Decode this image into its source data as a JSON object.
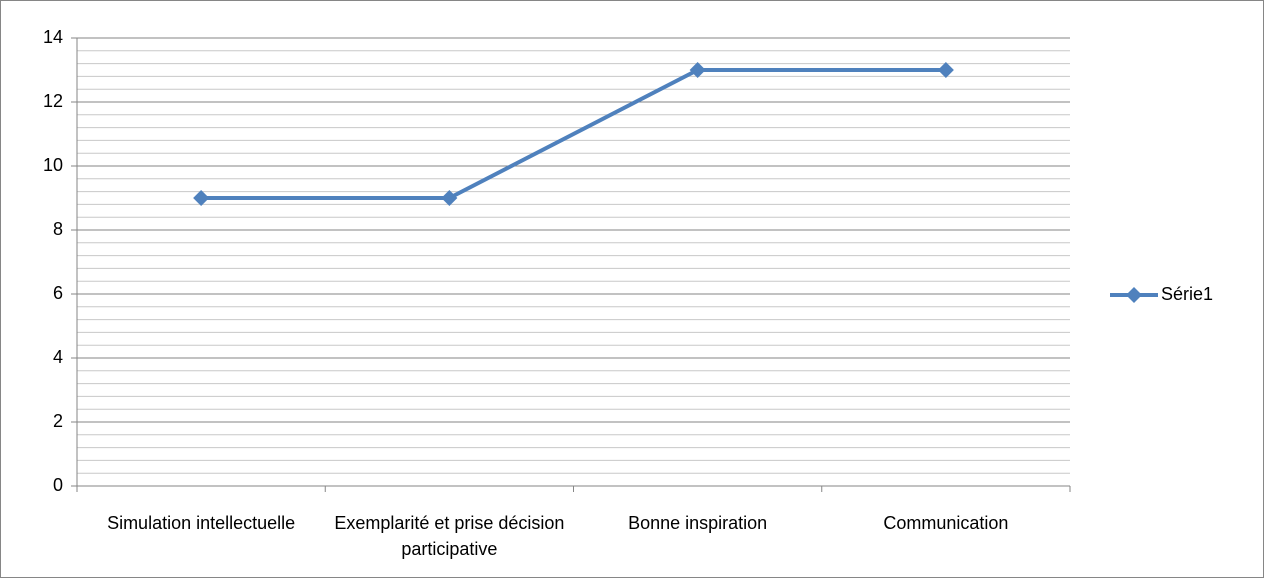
{
  "chart_data": {
    "type": "line",
    "categories": [
      "Simulation intellectuelle",
      "Exemplarité et prise décision participative",
      "Bonne inspiration",
      "Communication"
    ],
    "series": [
      {
        "name": "Série1",
        "color": "#4f81bd",
        "values": [
          9,
          9,
          13,
          13
        ]
      }
    ],
    "ylim": [
      0,
      14
    ],
    "yticks": [
      0,
      2,
      4,
      6,
      8,
      10,
      12,
      14
    ],
    "minor_yticks": [
      0.4,
      0.8,
      1.2,
      1.6,
      2.4,
      2.8,
      3.2,
      3.6,
      4.4,
      4.8,
      5.2,
      5.6,
      6.4,
      6.8,
      7.2,
      7.6,
      8.4,
      8.8,
      9.2,
      9.6,
      10.4,
      10.8,
      11.2,
      11.6,
      12.4,
      12.8,
      13.2,
      13.6
    ],
    "grid": true,
    "legend": "right"
  }
}
